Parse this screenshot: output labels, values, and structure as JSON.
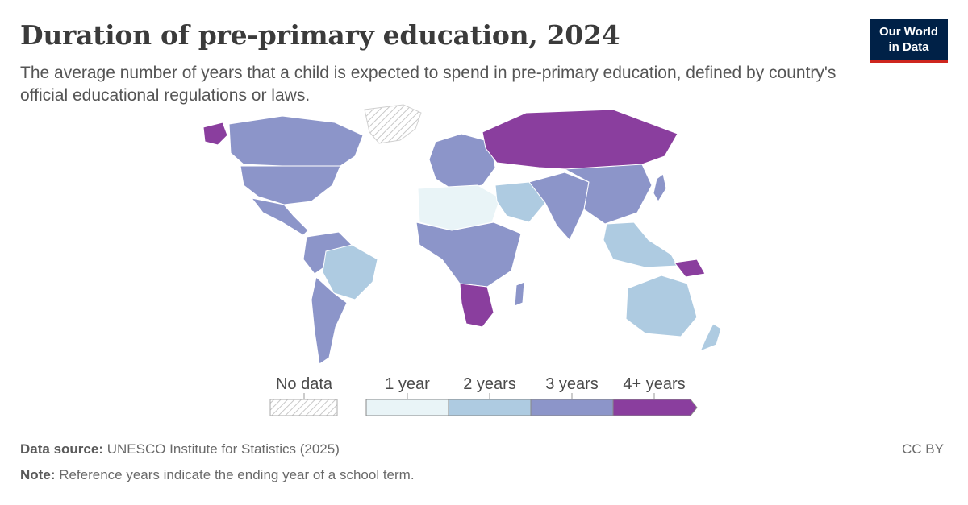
{
  "header": {
    "title": "Duration of pre-primary education, 2024",
    "subtitle": "The average number of years that a child is expected to spend in pre-primary education, defined by country's official educational regulations or laws.",
    "logo_line1": "Our World",
    "logo_line2": "in Data"
  },
  "legend": {
    "no_data_label": "No data",
    "bins": [
      {
        "label": "1 year",
        "color": "#e9f4f7"
      },
      {
        "label": "2 years",
        "color": "#aecbe1"
      },
      {
        "label": "3 years",
        "color": "#8c95c9"
      },
      {
        "label": "4+ years",
        "color": "#8a3e9e"
      }
    ]
  },
  "colors": {
    "one_year": "#e9f4f7",
    "two_years": "#aecbe1",
    "three_years": "#8c95c9",
    "four_plus_years": "#8a3e9e",
    "border": "#ffffff"
  },
  "footer": {
    "source_label": "Data source:",
    "source_text": "UNESCO Institute for Statistics (2025)",
    "note_label": "Note:",
    "note_text": "Reference years indicate the ending year of a school term.",
    "license": "CC BY"
  }
}
